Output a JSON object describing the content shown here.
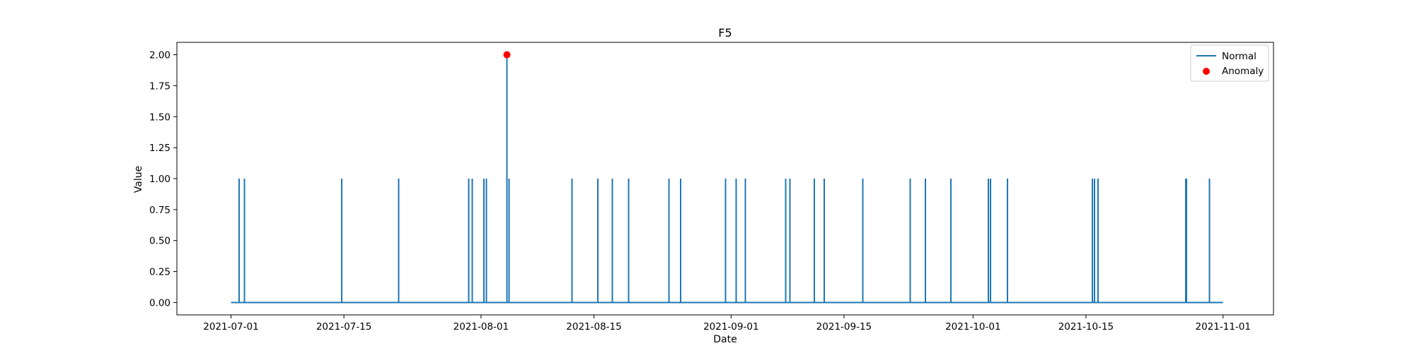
{
  "chart_data": {
    "type": "line",
    "title": "F5",
    "xlabel": "Date",
    "ylabel": "Value",
    "x_range": [
      "2021-06-24T07:00",
      "2021-11-07T06:00"
    ],
    "ylim": [
      -0.1,
      2.1
    ],
    "x_ticks": [
      "2021-07-01",
      "2021-07-15",
      "2021-08-01",
      "2021-08-15",
      "2021-09-01",
      "2021-09-15",
      "2021-10-01",
      "2021-10-15",
      "2021-11-01"
    ],
    "y_ticks": [
      0.0,
      0.25,
      0.5,
      0.75,
      1.0,
      1.25,
      1.5,
      1.75,
      2.0
    ],
    "y_tick_labels": [
      "0.00",
      "0.25",
      "0.50",
      "0.75",
      "1.00",
      "1.25",
      "1.50",
      "1.75",
      "2.00"
    ],
    "grid": false,
    "legend_position": "top-right",
    "baseline": {
      "start": "2021-07-01",
      "end": "2021-11-01",
      "value": 0
    },
    "series": [
      {
        "name": "Normal",
        "color": "#1f77b4",
        "spikes": [
          {
            "x": "2021-07-02T00:00",
            "y": 1
          },
          {
            "x": "2021-07-02T16:00",
            "y": 1
          },
          {
            "x": "2021-07-14T17:00",
            "y": 1
          },
          {
            "x": "2021-07-21T19:00",
            "y": 1
          },
          {
            "x": "2021-07-30T11:00",
            "y": 1
          },
          {
            "x": "2021-07-30T22:00",
            "y": 1
          },
          {
            "x": "2021-08-01T09:00",
            "y": 1
          },
          {
            "x": "2021-08-01T16:00",
            "y": 1
          },
          {
            "x": "2021-08-04T05:00",
            "y": 2
          },
          {
            "x": "2021-08-04T11:00",
            "y": 1
          },
          {
            "x": "2021-08-12T07:00",
            "y": 1
          },
          {
            "x": "2021-08-15T12:00",
            "y": 1
          },
          {
            "x": "2021-08-17T07:00",
            "y": 1
          },
          {
            "x": "2021-08-19T07:00",
            "y": 1
          },
          {
            "x": "2021-08-24T07:00",
            "y": 1
          },
          {
            "x": "2021-08-25T18:00",
            "y": 1
          },
          {
            "x": "2021-08-31T08:00",
            "y": 1
          },
          {
            "x": "2021-09-01T15:00",
            "y": 1
          },
          {
            "x": "2021-09-02T18:00",
            "y": 1
          },
          {
            "x": "2021-09-07T19:00",
            "y": 1
          },
          {
            "x": "2021-09-08T07:00",
            "y": 1
          },
          {
            "x": "2021-09-11T08:00",
            "y": 1
          },
          {
            "x": "2021-09-12T13:00",
            "y": 1
          },
          {
            "x": "2021-09-17T08:00",
            "y": 1
          },
          {
            "x": "2021-09-23T05:00",
            "y": 1
          },
          {
            "x": "2021-09-25T02:00",
            "y": 1
          },
          {
            "x": "2021-09-28T06:00",
            "y": 1
          },
          {
            "x": "2021-10-02T22:00",
            "y": 1
          },
          {
            "x": "2021-10-03T04:00",
            "y": 1
          },
          {
            "x": "2021-10-05T06:00",
            "y": 1
          },
          {
            "x": "2021-10-15T19:00",
            "y": 1
          },
          {
            "x": "2021-10-16T01:00",
            "y": 1
          },
          {
            "x": "2021-10-16T12:00",
            "y": 1
          },
          {
            "x": "2021-10-27T09:00",
            "y": 1
          },
          {
            "x": "2021-10-27T11:00",
            "y": 1
          },
          {
            "x": "2021-10-30T07:00",
            "y": 1
          }
        ]
      },
      {
        "name": "Anomaly",
        "color": "#ff0000",
        "points": [
          {
            "x": "2021-08-04T05:00",
            "y": 2
          }
        ]
      }
    ]
  }
}
